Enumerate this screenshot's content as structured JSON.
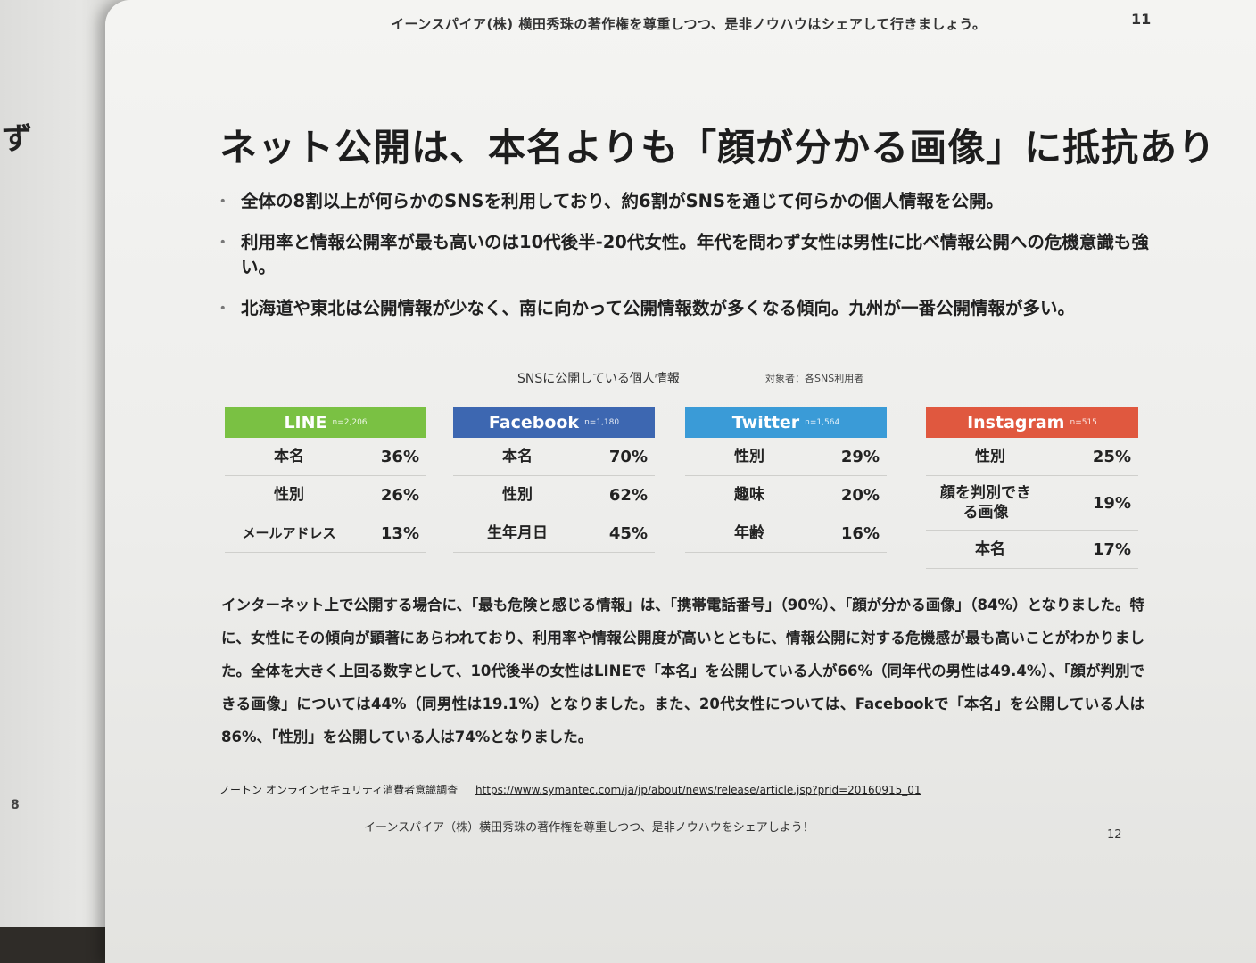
{
  "left_page": {
    "edge_char": "ず",
    "page_number": "8"
  },
  "header": {
    "running_title": "イーンスパイア(株) 横田秀珠の著作権を尊重しつつ、是非ノウハウはシェアして行きましょう。",
    "page_number": "11"
  },
  "title": "ネット公開は、本名よりも「顔が分かる画像」に抵抗あり",
  "bullets": [
    "全体の8割以上が何らかのSNSを利用しており、約6割がSNSを通じて何らかの個人情報を公開。",
    "利用率と情報公開率が最も高いのは10代後半-20代女性。年代を問わず女性は男性に比べ情報公開への危機意識も強い。",
    "北海道や東北は公開情報が少なく、南に向かって公開情報数が多くなる傾向。九州が一番公開情報が多い。"
  ],
  "chart_caption": {
    "title": "SNSに公開している個人情報",
    "subtitle": "対象者：各SNS利用者"
  },
  "sns_cards": [
    {
      "name": "LINE",
      "n": "n=2,206",
      "color": "#7ac143",
      "rows": [
        {
          "label": "本名",
          "value": "36%"
        },
        {
          "label": "性別",
          "value": "26%"
        },
        {
          "label": "メールアドレス",
          "value": "13%"
        }
      ]
    },
    {
      "name": "Facebook",
      "n": "n=1,180",
      "color": "#3d67b1",
      "rows": [
        {
          "label": "本名",
          "value": "70%"
        },
        {
          "label": "性別",
          "value": "62%"
        },
        {
          "label": "生年月日",
          "value": "45%"
        }
      ]
    },
    {
      "name": "Twitter",
      "n": "n=1,564",
      "color": "#3a9bd7",
      "rows": [
        {
          "label": "性別",
          "value": "29%"
        },
        {
          "label": "趣味",
          "value": "20%"
        },
        {
          "label": "年齢",
          "value": "16%"
        }
      ]
    },
    {
      "name": "Instagram",
      "n": "n=515",
      "color": "#e0583f",
      "rows": [
        {
          "label": "性別",
          "value": "25%"
        },
        {
          "label": "顔を判別できる画像",
          "value": "19%"
        },
        {
          "label": "本名",
          "value": "17%"
        }
      ]
    }
  ],
  "body_text": "インターネット上で公開する場合に、「最も危険と感じる情報」は、「携帯電話番号」（90%）、「顔が分かる画像」（84%）となりました。特に、女性にその傾向が顕著にあらわれており、利用率や情報公開度が高いとともに、情報公開に対する危機感が最も高いことがわかりました。全体を大きく上回る数字として、10代後半の女性はLINEで「本名」を公開している人が66%（同年代の男性は49.4%）、「顔が判別できる画像」については44%（同男性は19.1%）となりました。また、20代女性については、Facebookで「本名」を公開している人は86%、「性別」を公開している人は74%となりました。",
  "source": {
    "label": "ノートン オンラインセキュリティ消費者意識調査",
    "url": "https://www.symantec.com/ja/jp/about/news/release/article.jsp?prid=20160915_01"
  },
  "footer": {
    "text": "イーンスパイア（株）横田秀珠の著作権を尊重しつつ、是非ノウハウをシェアしよう！",
    "page_number": "12"
  }
}
